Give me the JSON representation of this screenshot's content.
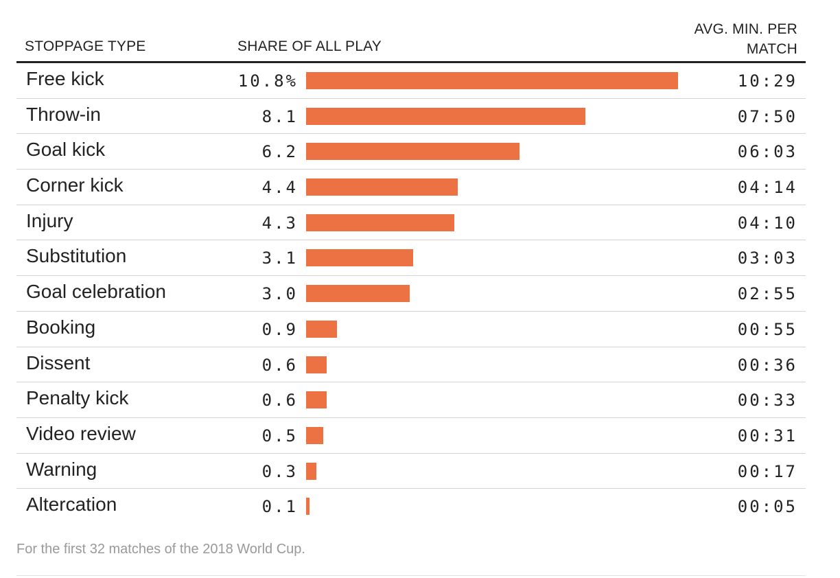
{
  "headers": {
    "stoppage_type": "STOPPAGE TYPE",
    "share": "SHARE OF ALL PLAY",
    "avg_line1": "AVG. MIN. PER",
    "avg_line2": "MATCH"
  },
  "chart_data": {
    "type": "bar",
    "orientation": "horizontal",
    "bar_color": "#ec7143",
    "xlim": [
      0,
      10.8
    ],
    "categories": [
      "Free kick",
      "Throw-in",
      "Goal kick",
      "Corner kick",
      "Injury",
      "Substitution",
      "Goal celebration",
      "Booking",
      "Dissent",
      "Penalty kick",
      "Video review",
      "Warning",
      "Altercation"
    ],
    "values": [
      10.8,
      8.1,
      6.2,
      4.4,
      4.3,
      3.1,
      3.0,
      0.9,
      0.6,
      0.6,
      0.5,
      0.3,
      0.1
    ],
    "value_labels": [
      "10.8%",
      "8.1",
      "6.2",
      "4.4",
      "4.3",
      "3.1",
      "3.0",
      "0.9",
      "0.6",
      "0.6",
      "0.5",
      "0.3",
      "0.1"
    ],
    "avg_min_per_match": [
      "10:29",
      "07:50",
      "06:03",
      "04:14",
      "04:10",
      "03:03",
      "02:55",
      "00:55",
      "00:36",
      "00:33",
      "00:31",
      "00:17",
      "00:05"
    ]
  },
  "footnote": "For the first 32 matches of the 2018 World Cup."
}
